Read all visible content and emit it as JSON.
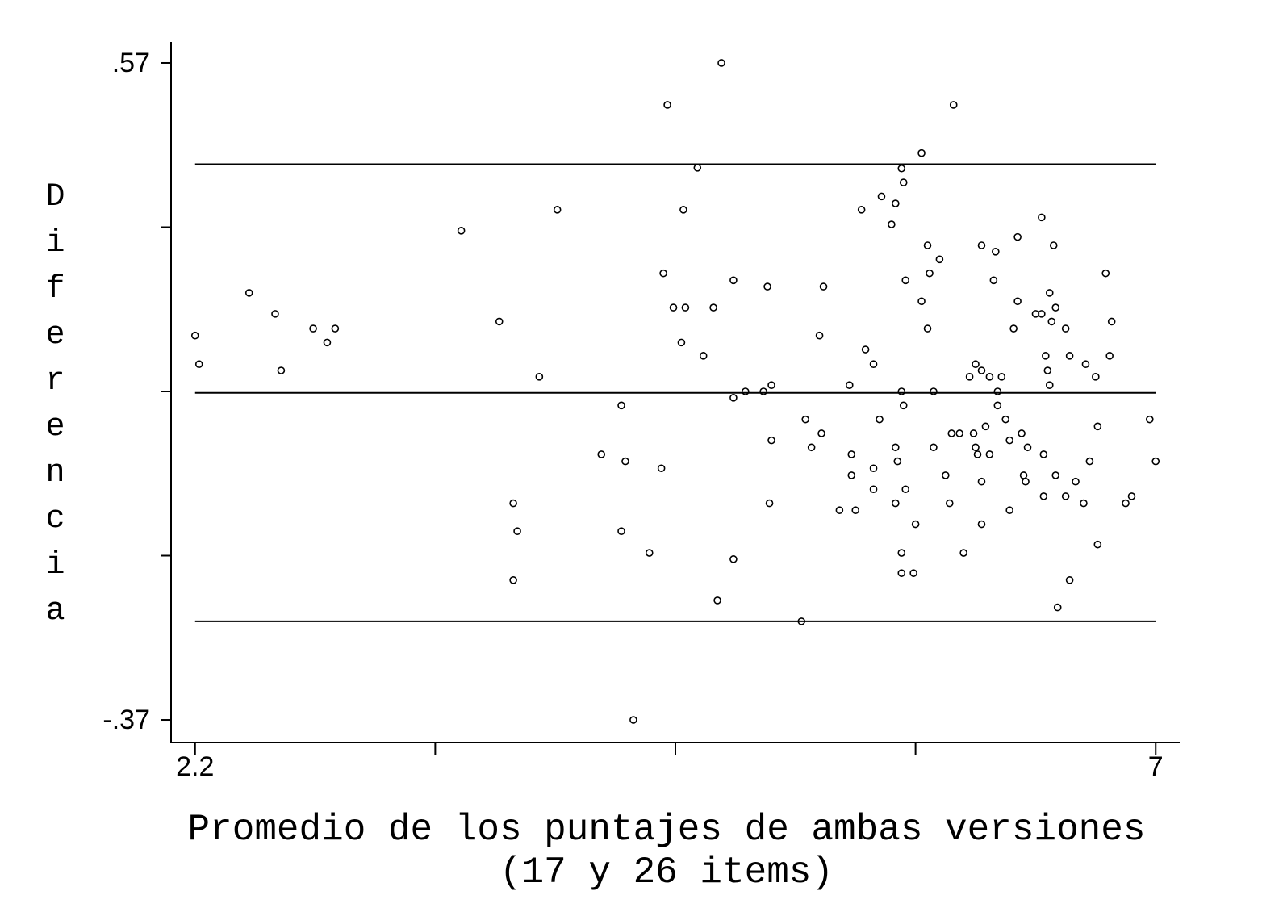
{
  "chart_data": {
    "type": "scatter",
    "xlabel": [
      "Promedio de los puntajes de ambas versiones",
      "(17 y 26 items)"
    ],
    "ylabel": "Diferencia",
    "xlim": [
      2.08,
      7.12
    ],
    "ylim": [
      -0.4,
      0.6
    ],
    "xticks": [
      {
        "value": 2.2,
        "label": "2.2"
      },
      {
        "value": 3.4,
        "label": null
      },
      {
        "value": 4.6,
        "label": null
      },
      {
        "value": 5.8,
        "label": null
      },
      7
    ],
    "yticks": [
      {
        "value": 0.57,
        "label": ".57"
      },
      {
        "value": 0.335,
        "label": null
      },
      {
        "value": 0.1,
        "label": null
      },
      {
        "value": -0.135,
        "label": null
      },
      {
        "value": -0.37,
        "label": "-.37"
      }
    ],
    "reference_lines": [
      0.425,
      0.098,
      -0.229
    ],
    "color": "#000000",
    "x": [
      2.2,
      2.22,
      2.47,
      2.6,
      2.63,
      2.79,
      2.86,
      2.9,
      3.53,
      3.72,
      3.92,
      4.01,
      3.79,
      3.81,
      3.79,
      4.23,
      4.33,
      4.35,
      4.33,
      4.39,
      4.47,
      4.53,
      4.54,
      4.56,
      4.59,
      4.65,
      4.63,
      4.64,
      4.71,
      4.74,
      4.79,
      4.81,
      4.83,
      4.89,
      4.89,
      4.89,
      4.95,
      5.04,
      5.06,
      5.08,
      5.08,
      5.07,
      5.23,
      5.25,
      5.28,
      5.32,
      5.33,
      5.34,
      5.42,
      5.47,
      5.48,
      5.48,
      5.5,
      5.53,
      5.55,
      5.59,
      5.59,
      5.59,
      5.62,
      5.63,
      5.68,
      5.7,
      5.7,
      5.7,
      5.71,
      5.73,
      5.73,
      5.74,
      5.74,
      5.73,
      5.73,
      5.75,
      5.75,
      5.79,
      5.8,
      5.83,
      5.83,
      5.86,
      5.86,
      5.87,
      5.89,
      5.89,
      5.92,
      5.95,
      5.97,
      5.98,
      5.99,
      6.02,
      6.04,
      6.07,
      6.09,
      6.1,
      6.1,
      6.11,
      6.13,
      6.13,
      6.13,
      6.13,
      6.15,
      6.17,
      6.17,
      6.19,
      6.2,
      6.21,
      6.21,
      6.23,
      6.25,
      6.27,
      6.27,
      6.29,
      6.31,
      6.31,
      6.33,
      6.34,
      6.35,
      6.36,
      6.4,
      6.43,
      6.43,
      6.44,
      6.44,
      6.45,
      6.46,
      6.47,
      6.47,
      6.48,
      6.49,
      6.5,
      6.5,
      6.51,
      6.55,
      6.55,
      6.57,
      6.57,
      6.6,
      6.64,
      6.65,
      6.67,
      6.7,
      6.71,
      6.71,
      6.75,
      6.77,
      6.78,
      6.85,
      6.88,
      6.97,
      7.0
    ],
    "values": [
      0.18,
      0.139,
      0.241,
      0.211,
      0.13,
      0.19,
      0.17,
      0.19,
      0.33,
      0.2,
      0.121,
      0.36,
      -0.06,
      -0.1,
      -0.17,
      0.01,
      0.08,
      0.0,
      -0.1,
      -0.37,
      -0.131,
      -0.01,
      0.269,
      0.51,
      0.22,
      0.22,
      0.17,
      0.36,
      0.42,
      0.151,
      0.22,
      -0.199,
      0.57,
      0.259,
      0.091,
      -0.14,
      0.1,
      0.1,
      0.25,
      0.109,
      0.03,
      -0.06,
      -0.229,
      0.06,
      0.02,
      0.18,
      0.04,
      0.25,
      -0.07,
      0.109,
      0.01,
      -0.02,
      -0.07,
      0.36,
      0.16,
      0.139,
      -0.01,
      -0.04,
      0.06,
      0.379,
      0.339,
      -0.06,
      0.369,
      0.02,
      0.0,
      0.419,
      0.1,
      0.399,
      0.08,
      -0.131,
      -0.16,
      0.259,
      -0.04,
      -0.16,
      -0.09,
      0.441,
      0.229,
      0.309,
      0.19,
      0.269,
      0.1,
      0.02,
      0.289,
      -0.02,
      -0.06,
      0.04,
      0.51,
      0.04,
      -0.131,
      0.121,
      0.04,
      0.139,
      0.02,
      0.01,
      0.13,
      -0.029,
      0.309,
      -0.09,
      0.05,
      0.121,
      0.01,
      0.259,
      0.3,
      0.1,
      0.08,
      0.121,
      0.06,
      -0.07,
      0.03,
      0.19,
      0.321,
      0.229,
      0.04,
      -0.02,
      -0.029,
      0.02,
      0.211,
      0.349,
      0.211,
      -0.05,
      0.01,
      0.151,
      0.13,
      0.241,
      0.109,
      0.2,
      0.309,
      0.22,
      -0.02,
      -0.209,
      0.19,
      -0.05,
      0.151,
      -0.17,
      -0.029,
      -0.06,
      0.139,
      0.0,
      0.121,
      0.05,
      -0.119,
      0.269,
      0.151,
      0.2,
      -0.06,
      -0.05,
      0.06,
      0.0
    ]
  }
}
